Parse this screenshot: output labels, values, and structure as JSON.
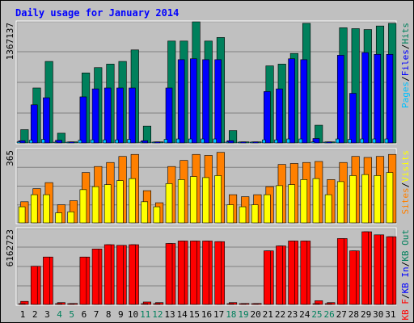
{
  "chart_data": {
    "type": "bar",
    "title": "Daily usage for January 2014",
    "days": [
      "1",
      "2",
      "3",
      "4",
      "5",
      "6",
      "7",
      "8",
      "9",
      "10",
      "11",
      "12",
      "13",
      "14",
      "15",
      "16",
      "17",
      "18",
      "19",
      "20",
      "21",
      "22",
      "23",
      "24",
      "25",
      "26",
      "27",
      "28",
      "29",
      "30",
      "31"
    ],
    "weekend_days": [
      "4",
      "5",
      "11",
      "12",
      "18",
      "19",
      "25",
      "26"
    ],
    "colors": {
      "background": "#c0c0c0",
      "frame": "#ffffff",
      "title": "#0000ff",
      "weekday_label": "#000000",
      "weekend_label": "#00805c",
      "hits": "#00805c",
      "files": "#0000ff",
      "pages": "#00c0ff",
      "visits": "#ffff00",
      "sites": "#ff8000",
      "kb_in": "#00805c",
      "kb_out": "#ff0000",
      "kb_f": "#ff0000",
      "gridline": "#808080"
    },
    "panels": [
      {
        "id": "hits-files-pages",
        "ymax_label": "1367137",
        "ylim": [
          0,
          1367137
        ],
        "legend": [
          {
            "text": "Pages",
            "color": "#00c0ff"
          },
          {
            "text": "/",
            "color": "#000000"
          },
          {
            "text": "Files",
            "color": "#0000ff"
          },
          {
            "text": "/",
            "color": "#000000"
          },
          {
            "text": "Hits",
            "color": "#00805c"
          }
        ],
        "series": [
          {
            "name": "Hits",
            "values": [
              150000,
              620000,
              920000,
              110000,
              12000,
              790000,
              850000,
              890000,
              920000,
              1050000,
              190000,
              12000,
              1150000,
              1150000,
              1367137,
              1150000,
              1190000,
              140000,
              12000,
              12000,
              870000,
              890000,
              1010000,
              1350000,
              200000,
              12000,
              1300000,
              1290000,
              1280000,
              1320000,
              1350000
            ]
          },
          {
            "name": "Files",
            "values": [
              25000,
              430000,
              510000,
              30000,
              12000,
              520000,
              610000,
              620000,
              620000,
              620000,
              25000,
              12000,
              620000,
              940000,
              950000,
              940000,
              940000,
              25000,
              12000,
              12000,
              580000,
              610000,
              950000,
              940000,
              50000,
              12000,
              990000,
              560000,
              1020000,
              1000000,
              1000000
            ]
          },
          {
            "name": "Pages",
            "values": [
              12000,
              30000,
              40000,
              8000,
              6000,
              30000,
              35000,
              35000,
              35000,
              40000,
              10000,
              6000,
              40000,
              45000,
              45000,
              45000,
              45000,
              10000,
              6000,
              6000,
              35000,
              35000,
              45000,
              45000,
              12000,
              6000,
              45000,
              40000,
              45000,
              45000,
              45000
            ]
          }
        ]
      },
      {
        "id": "visits-sites",
        "ymax_label": "365",
        "ylim": [
          0,
          365
        ],
        "legend": [
          {
            "text": "Sites",
            "color": "#ff8000"
          },
          {
            "text": "/",
            "color": "#000000"
          },
          {
            "text": "Visits",
            "color": "#ffff00"
          }
        ],
        "series": [
          {
            "name": "Sites",
            "values": [
              105,
              170,
              200,
              90,
              110,
              250,
              280,
              300,
              330,
              340,
              160,
              100,
              280,
              310,
              340,
              335,
              350,
              140,
              130,
              140,
              180,
              290,
              295,
              300,
              305,
              215,
              300,
              330,
              325,
              330,
              340
            ]
          },
          {
            "name": "Visits",
            "values": [
              80,
              140,
              140,
              50,
              55,
              165,
              180,
              190,
              210,
              220,
              105,
              80,
              195,
              215,
              230,
              225,
              235,
              90,
              80,
              90,
              140,
              185,
              190,
              215,
              220,
              140,
              205,
              235,
              240,
              235,
              250
            ]
          }
        ]
      },
      {
        "id": "kbytes",
        "ymax_label": "6162723",
        "ylim": [
          0,
          6162723
        ],
        "legend": [
          {
            "text": "KB F",
            "color": "#ff0000"
          },
          {
            "text": "/",
            "color": "#000000"
          },
          {
            "text": "KB In",
            "color": "#0000ff"
          },
          {
            "text": "/",
            "color": "#000000"
          },
          {
            "text": "KB Out",
            "color": "#00805c"
          }
        ],
        "series": [
          {
            "name": "KB Out",
            "values": [
              250000,
              3100000,
              3850000,
              150000,
              80000,
              3850000,
              4500000,
              4850000,
              4800000,
              4850000,
              200000,
              150000,
              4950000,
              5150000,
              5150000,
              5150000,
              5100000,
              150000,
              80000,
              80000,
              4350000,
              4750000,
              5150000,
              5150000,
              300000,
              150000,
              5350000,
              4350000,
              5900000,
              5650000,
              5500000
            ]
          },
          {
            "name": "KB F",
            "values": [
              30000,
              3100000,
              3850000,
              20000,
              10000,
              3850000,
              4500000,
              4850000,
              4800000,
              4850000,
              30000,
              20000,
              4950000,
              5150000,
              5150000,
              5150000,
              5100000,
              20000,
              10000,
              10000,
              4350000,
              4750000,
              5150000,
              5150000,
              40000,
              20000,
              5350000,
              4350000,
              5900000,
              5650000,
              5500000
            ]
          }
        ]
      }
    ]
  }
}
